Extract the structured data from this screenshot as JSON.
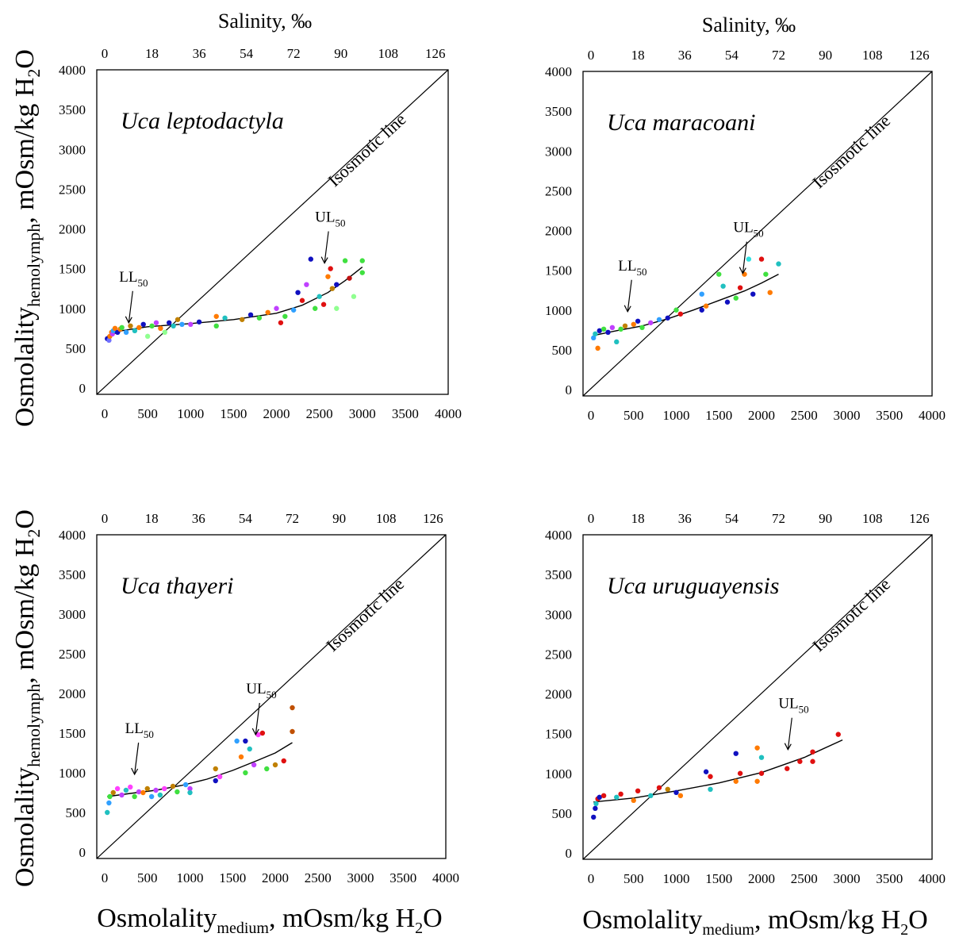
{
  "figure": {
    "top_axis_title": "Salinity, ‰",
    "y_label_main": "Osmolality",
    "y_label_sub": "hemolymph",
    "y_label_tail": ", mOsm/kg H",
    "x_label_main": "Osmolality",
    "x_label_sub": "medium",
    "x_label_tail": ", mOsm/kg H",
    "h2o_sub": "2",
    "h2o_end": "O"
  },
  "chart_data": [
    {
      "type": "scatter",
      "species": "Uca leptodactyla",
      "isosmotic_label": "Isosmotic line",
      "ll_label": "LL",
      "ul_label": "UL",
      "limit_sub": "50",
      "xlim": [
        0,
        4000
      ],
      "ylim": [
        0,
        4000
      ],
      "x_ticks": [
        "0",
        "500",
        "1000",
        "1500",
        "2000",
        "2500",
        "3000",
        "3500",
        "4000"
      ],
      "y_ticks": [
        "0",
        "500",
        "1000",
        "1500",
        "2000",
        "2500",
        "3000",
        "3500",
        "4000"
      ],
      "salinity_ticks": [
        "0",
        "18",
        "36",
        "54",
        "72",
        "90",
        "108",
        "126"
      ],
      "ll_point": [
        280,
        820
      ],
      "ul_point": [
        2560,
        1570
      ],
      "fit_curve": [
        [
          30,
          650
        ],
        [
          200,
          720
        ],
        [
          500,
          770
        ],
        [
          1000,
          810
        ],
        [
          1500,
          860
        ],
        [
          2000,
          940
        ],
        [
          2300,
          1040
        ],
        [
          2600,
          1200
        ],
        [
          2800,
          1350
        ],
        [
          3000,
          1520
        ]
      ],
      "points": [
        [
          30,
          620,
          "#1010c0"
        ],
        [
          50,
          600,
          "#7070ff"
        ],
        [
          60,
          650,
          "#ff7a00"
        ],
        [
          80,
          700,
          "#ff7a00"
        ],
        [
          90,
          680,
          "#c040ff"
        ],
        [
          100,
          720,
          "#30a0ff"
        ],
        [
          120,
          750,
          "#ff7a00"
        ],
        [
          150,
          700,
          "#1010c0"
        ],
        [
          180,
          740,
          "#ff7a00"
        ],
        [
          200,
          760,
          "#40e040"
        ],
        [
          250,
          700,
          "#30a0ff"
        ],
        [
          300,
          780,
          "#c08000"
        ],
        [
          350,
          720,
          "#20c0c0"
        ],
        [
          400,
          760,
          "#ff7a00"
        ],
        [
          450,
          800,
          "#1010c0"
        ],
        [
          500,
          650,
          "#90ff90"
        ],
        [
          550,
          780,
          "#40e040"
        ],
        [
          600,
          820,
          "#c040ff"
        ],
        [
          650,
          750,
          "#ff7a00"
        ],
        [
          700,
          700,
          "#90ff90"
        ],
        [
          750,
          820,
          "#1010c0"
        ],
        [
          800,
          780,
          "#20c0c0"
        ],
        [
          850,
          860,
          "#c08000"
        ],
        [
          900,
          800,
          "#30a0ff"
        ],
        [
          1000,
          800,
          "#c040ff"
        ],
        [
          1100,
          830,
          "#1010c0"
        ],
        [
          1300,
          900,
          "#ff7a00"
        ],
        [
          1300,
          780,
          "#40e040"
        ],
        [
          1400,
          880,
          "#20c0c0"
        ],
        [
          1600,
          860,
          "#c08000"
        ],
        [
          1700,
          920,
          "#1010c0"
        ],
        [
          1800,
          880,
          "#40e040"
        ],
        [
          1900,
          950,
          "#ff7a00"
        ],
        [
          2000,
          1000,
          "#c040ff"
        ],
        [
          2050,
          820,
          "#e01010"
        ],
        [
          2100,
          900,
          "#40e040"
        ],
        [
          2200,
          980,
          "#30a0ff"
        ],
        [
          2250,
          1200,
          "#1010c0"
        ],
        [
          2300,
          1100,
          "#e01010"
        ],
        [
          2350,
          1300,
          "#c040ff"
        ],
        [
          2400,
          1620,
          "#1010c0"
        ],
        [
          2450,
          1000,
          "#40e040"
        ],
        [
          2500,
          1150,
          "#20c0c0"
        ],
        [
          2550,
          1050,
          "#e01010"
        ],
        [
          2600,
          1400,
          "#ff7a00"
        ],
        [
          2630,
          1500,
          "#e01010"
        ],
        [
          2650,
          1250,
          "#c08000"
        ],
        [
          2700,
          1300,
          "#1010c0"
        ],
        [
          2700,
          1000,
          "#90ff90"
        ],
        [
          2800,
          1600,
          "#40e040"
        ],
        [
          2850,
          1380,
          "#c01010"
        ],
        [
          2900,
          1150,
          "#90ff90"
        ],
        [
          3000,
          1450,
          "#40e040"
        ],
        [
          3000,
          1600,
          "#40e040"
        ]
      ]
    },
    {
      "type": "scatter",
      "species": "Uca maracoani",
      "isosmotic_label": "Isosmotic line",
      "ll_label": "LL",
      "ul_label": "UL",
      "limit_sub": "50",
      "xlim": [
        0,
        4000
      ],
      "ylim": [
        0,
        4000
      ],
      "x_ticks": [
        "0",
        "500",
        "1000",
        "1500",
        "2000",
        "2500",
        "3000",
        "3500",
        "4000"
      ],
      "y_ticks": [
        "0",
        "500",
        "1000",
        "1500",
        "2000",
        "2500",
        "3000",
        "3500",
        "4000"
      ],
      "salinity_ticks": [
        "0",
        "18",
        "36",
        "54",
        "72",
        "90",
        "108",
        "126"
      ],
      "ll_point": [
        430,
        980
      ],
      "ul_point": [
        1780,
        1460
      ],
      "fit_curve": [
        [
          30,
          680
        ],
        [
          300,
          740
        ],
        [
          600,
          800
        ],
        [
          900,
          890
        ],
        [
          1200,
          1000
        ],
        [
          1500,
          1120
        ],
        [
          1800,
          1240
        ],
        [
          2000,
          1340
        ],
        [
          2200,
          1450
        ]
      ],
      "points": [
        [
          30,
          650,
          "#30a0ff"
        ],
        [
          50,
          700,
          "#20c0c0"
        ],
        [
          80,
          520,
          "#ff7a00"
        ],
        [
          100,
          740,
          "#1010c0"
        ],
        [
          150,
          760,
          "#40e040"
        ],
        [
          200,
          720,
          "#1010c0"
        ],
        [
          250,
          780,
          "#c040ff"
        ],
        [
          300,
          600,
          "#20c0c0"
        ],
        [
          350,
          760,
          "#40e040"
        ],
        [
          400,
          800,
          "#c08000"
        ],
        [
          500,
          820,
          "#ff7a00"
        ],
        [
          550,
          860,
          "#1010c0"
        ],
        [
          600,
          780,
          "#40e040"
        ],
        [
          700,
          840,
          "#c040ff"
        ],
        [
          800,
          880,
          "#30a0ff"
        ],
        [
          900,
          900,
          "#1010c0"
        ],
        [
          1000,
          1000,
          "#40e040"
        ],
        [
          1050,
          950,
          "#e01010"
        ],
        [
          1300,
          1200,
          "#30a0ff"
        ],
        [
          1300,
          1000,
          "#1010c0"
        ],
        [
          1350,
          1050,
          "#ff7a00"
        ],
        [
          1500,
          1450,
          "#40e040"
        ],
        [
          1550,
          1300,
          "#20c0c0"
        ],
        [
          1600,
          1100,
          "#1010c0"
        ],
        [
          1700,
          1150,
          "#40e040"
        ],
        [
          1750,
          1280,
          "#e01010"
        ],
        [
          1800,
          1450,
          "#ff7a00"
        ],
        [
          1850,
          1640,
          "#30e0e0"
        ],
        [
          1900,
          1200,
          "#1010c0"
        ],
        [
          2000,
          1640,
          "#e01010"
        ],
        [
          2050,
          1450,
          "#40e040"
        ],
        [
          2100,
          1220,
          "#ff7a00"
        ],
        [
          2200,
          1580,
          "#20c0c0"
        ]
      ]
    },
    {
      "type": "scatter",
      "species": "Uca thayeri",
      "isosmotic_label": "Isosmotic line",
      "ll_label": "LL",
      "ul_label": "UL",
      "limit_sub": "50",
      "xlim": [
        0,
        4000
      ],
      "ylim": [
        0,
        4000
      ],
      "x_ticks": [
        "0",
        "500",
        "1000",
        "1500",
        "2000",
        "2500",
        "3000",
        "3500",
        "4000"
      ],
      "y_ticks": [
        "0",
        "500",
        "1000",
        "1500",
        "2000",
        "2500",
        "3000",
        "3500",
        "4000"
      ],
      "salinity_ticks": [
        "0",
        "18",
        "36",
        "54",
        "72",
        "90",
        "108",
        "126"
      ],
      "ll_point": [
        350,
        980
      ],
      "ul_point": [
        1770,
        1480
      ],
      "fit_curve": [
        [
          30,
          700
        ],
        [
          300,
          740
        ],
        [
          600,
          780
        ],
        [
          900,
          840
        ],
        [
          1200,
          920
        ],
        [
          1500,
          1030
        ],
        [
          1800,
          1160
        ],
        [
          2000,
          1250
        ],
        [
          2200,
          1380
        ]
      ],
      "points": [
        [
          30,
          500,
          "#20c0c0"
        ],
        [
          50,
          620,
          "#30a0ff"
        ],
        [
          60,
          700,
          "#40e040"
        ],
        [
          100,
          750,
          "#c08000"
        ],
        [
          150,
          800,
          "#ff40ff"
        ],
        [
          200,
          720,
          "#c040ff"
        ],
        [
          250,
          780,
          "#20c0c0"
        ],
        [
          300,
          820,
          "#ff40ff"
        ],
        [
          350,
          700,
          "#40e040"
        ],
        [
          400,
          760,
          "#c040ff"
        ],
        [
          450,
          750,
          "#ff7a00"
        ],
        [
          500,
          800,
          "#c08000"
        ],
        [
          550,
          700,
          "#30a0ff"
        ],
        [
          600,
          780,
          "#c040ff"
        ],
        [
          650,
          720,
          "#20c0c0"
        ],
        [
          700,
          800,
          "#ff40ff"
        ],
        [
          800,
          830,
          "#c08000"
        ],
        [
          850,
          760,
          "#40e040"
        ],
        [
          950,
          850,
          "#30a0ff"
        ],
        [
          1000,
          800,
          "#c040ff"
        ],
        [
          1000,
          750,
          "#20c0c0"
        ],
        [
          1300,
          1050,
          "#c08000"
        ],
        [
          1300,
          900,
          "#1010c0"
        ],
        [
          1350,
          950,
          "#ff40ff"
        ],
        [
          1550,
          1400,
          "#30a0ff"
        ],
        [
          1600,
          1200,
          "#ff7a00"
        ],
        [
          1650,
          1400,
          "#1010c0"
        ],
        [
          1650,
          1000,
          "#40e040"
        ],
        [
          1700,
          1300,
          "#20c0c0"
        ],
        [
          1750,
          1100,
          "#c040ff"
        ],
        [
          1800,
          1480,
          "#ff40ff"
        ],
        [
          1850,
          1500,
          "#e01010"
        ],
        [
          1900,
          1050,
          "#40e040"
        ],
        [
          2000,
          1100,
          "#c08000"
        ],
        [
          2100,
          1150,
          "#e01010"
        ],
        [
          2200,
          1520,
          "#c05000"
        ],
        [
          2200,
          1820,
          "#c05000"
        ]
      ]
    },
    {
      "type": "scatter",
      "species": "Uca uruguayensis",
      "isosmotic_label": "Isosmotic line",
      "ll_label": "",
      "ul_label": "UL",
      "limit_sub": "50",
      "xlim": [
        0,
        4000
      ],
      "ylim": [
        0,
        4000
      ],
      "x_ticks": [
        "0",
        "500",
        "1000",
        "1500",
        "2000",
        "2500",
        "3000",
        "3500",
        "4000"
      ],
      "y_ticks": [
        "0",
        "500",
        "1000",
        "1500",
        "2000",
        "2500",
        "3000",
        "3500",
        "4000"
      ],
      "salinity_ticks": [
        "0",
        "18",
        "36",
        "54",
        "72",
        "90",
        "108",
        "126"
      ],
      "ll_point": null,
      "ul_point": [
        2310,
        1300
      ],
      "fit_curve": [
        [
          30,
          640
        ],
        [
          500,
          690
        ],
        [
          1000,
          780
        ],
        [
          1500,
          880
        ],
        [
          2000,
          1010
        ],
        [
          2500,
          1200
        ],
        [
          2950,
          1420
        ]
      ],
      "points": [
        [
          30,
          450,
          "#1010c0"
        ],
        [
          50,
          560,
          "#1010c0"
        ],
        [
          60,
          620,
          "#20c0c0"
        ],
        [
          80,
          680,
          "#e01010"
        ],
        [
          100,
          700,
          "#1010c0"
        ],
        [
          150,
          720,
          "#e01010"
        ],
        [
          300,
          700,
          "#20c0c0"
        ],
        [
          350,
          740,
          "#e01010"
        ],
        [
          500,
          660,
          "#ff7a00"
        ],
        [
          550,
          780,
          "#e01010"
        ],
        [
          700,
          720,
          "#20c0c0"
        ],
        [
          800,
          820,
          "#e01010"
        ],
        [
          900,
          800,
          "#c08000"
        ],
        [
          1000,
          760,
          "#1010c0"
        ],
        [
          1050,
          720,
          "#ff7a00"
        ],
        [
          1350,
          1020,
          "#1010c0"
        ],
        [
          1400,
          800,
          "#20c0c0"
        ],
        [
          1400,
          960,
          "#e01010"
        ],
        [
          1700,
          1250,
          "#1010c0"
        ],
        [
          1700,
          900,
          "#ff7a00"
        ],
        [
          1750,
          1000,
          "#e01010"
        ],
        [
          1950,
          1320,
          "#ff7a00"
        ],
        [
          1950,
          900,
          "#ff7a00"
        ],
        [
          2000,
          1200,
          "#20c0c0"
        ],
        [
          2000,
          1000,
          "#e01010"
        ],
        [
          2300,
          1060,
          "#e01010"
        ],
        [
          2450,
          1150,
          "#e01010"
        ],
        [
          2600,
          1150,
          "#e01010"
        ],
        [
          2600,
          1270,
          "#e01010"
        ],
        [
          2900,
          1490,
          "#e01010"
        ]
      ]
    }
  ]
}
